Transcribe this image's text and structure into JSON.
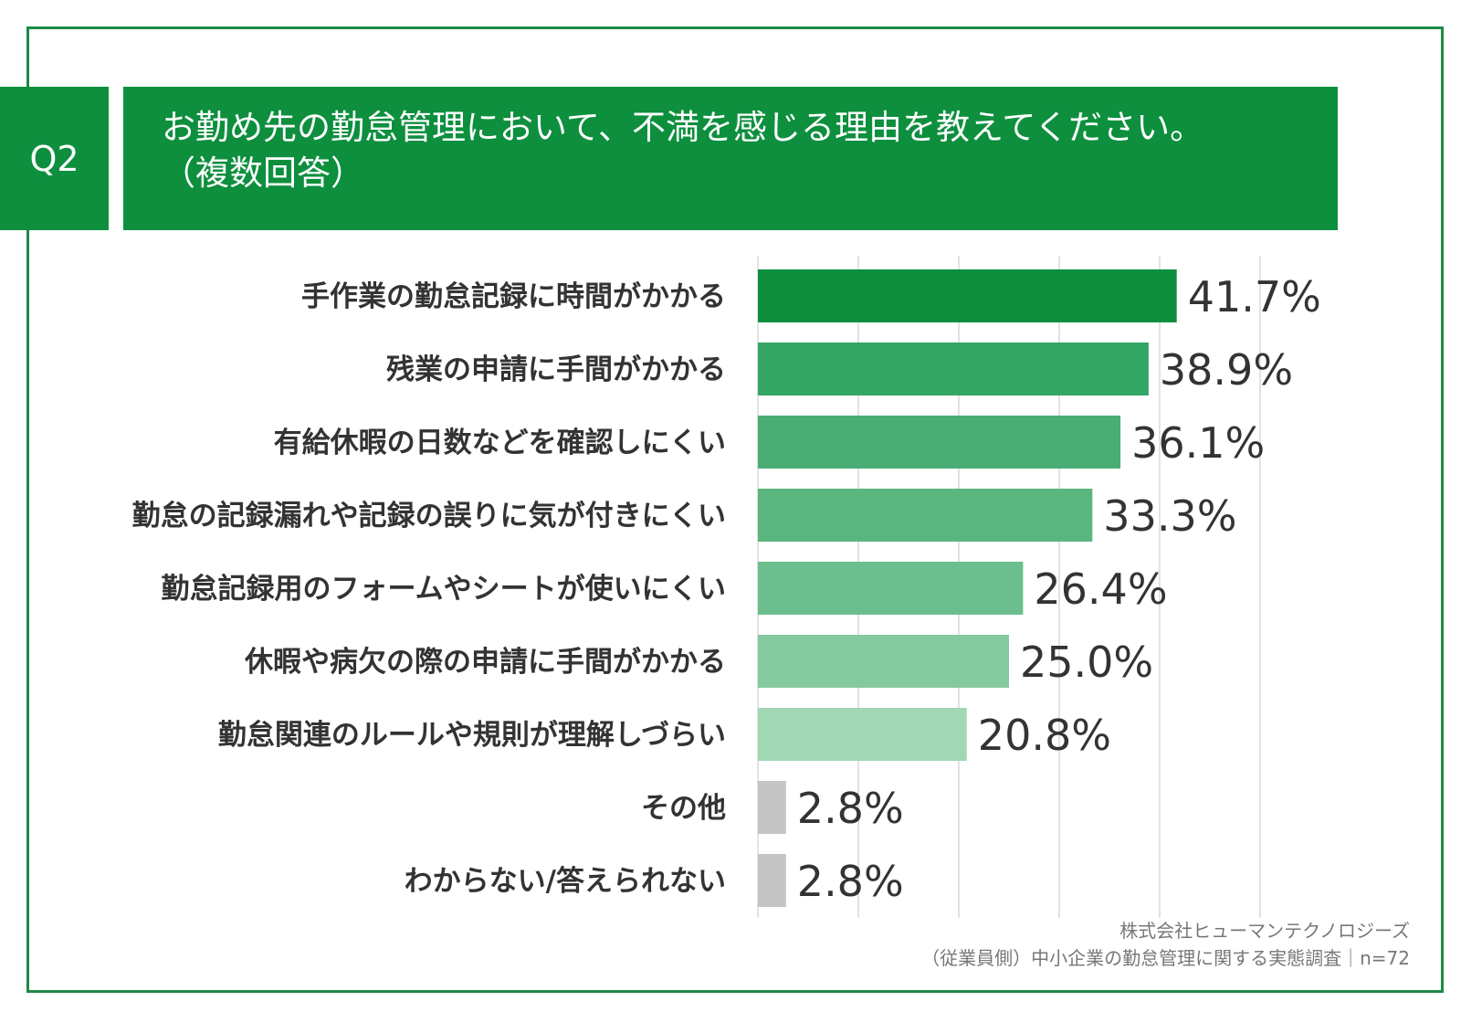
{
  "question": {
    "badge": "Q2",
    "title_line1": "お勤め先の勤怠管理において、不満を感じる理由を教えてください。",
    "title_line2": "（複数回答）"
  },
  "colors": {
    "brand": "#0d8f3e",
    "frame": "#1c8a44",
    "other": "#c4c4c4"
  },
  "chart_data": {
    "type": "bar",
    "orientation": "horizontal",
    "title": "お勤め先の勤怠管理において、不満を感じる理由を教えてください。（複数回答）",
    "categories": [
      "手作業の勤怠記録に時間がかかる",
      "残業の申請に手間がかかる",
      "有給休暇の日数などを確認しにくい",
      "勤怠の記録漏れや記録の誤りに気が付きにくい",
      "勤怠記録用のフォームやシートが使いにくい",
      "休暇や病欠の際の申請に手間がかかる",
      "勤怠関連のルールや規則が理解しづらい",
      "その他",
      "わからない/答えられない"
    ],
    "values": [
      41.7,
      38.9,
      36.1,
      33.3,
      26.4,
      25.0,
      20.8,
      2.8,
      2.8
    ],
    "value_labels": [
      "41.7%",
      "38.9%",
      "36.1%",
      "33.3%",
      "26.4%",
      "25.0%",
      "20.8%",
      "2.8%",
      "2.8%"
    ],
    "bar_colors": [
      "#0d8f3e",
      "#33a565",
      "#4aae74",
      "#5ab57f",
      "#6cbe8e",
      "#85c99f",
      "#a1d7b5",
      "#c4c4c4",
      "#c4c4c4"
    ],
    "unit": "%",
    "xlim": [
      0,
      50
    ],
    "grid_step": 10,
    "grid": true
  },
  "footer": {
    "company": "株式会社ヒューマンテクノロジーズ",
    "survey": "（従業員側）中小企業の勤怠管理に関する実態調査｜n=72"
  }
}
